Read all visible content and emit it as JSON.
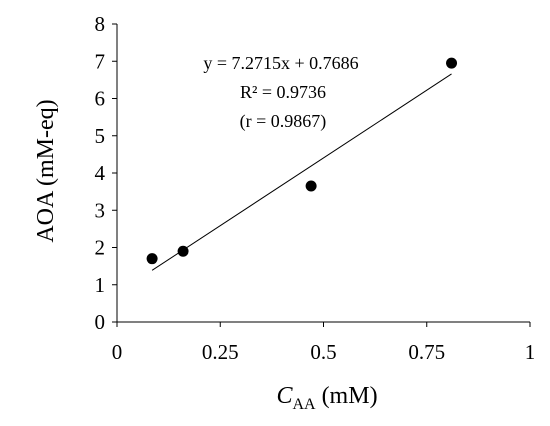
{
  "chart_data": {
    "type": "scatter",
    "xlabel": "",
    "xlabel_parts": {
      "var": "C",
      "sub": "AA",
      "unit": " (mM)"
    },
    "ylabel": "AOA (mM-eq)",
    "xlim": [
      0,
      1
    ],
    "ylim": [
      0,
      8
    ],
    "x_ticks": [
      "0",
      "0.25",
      "0.5",
      "0.75",
      "1"
    ],
    "x_tick_values": [
      0,
      0.25,
      0.5,
      0.75,
      1
    ],
    "y_ticks": [
      "0",
      "1",
      "2",
      "3",
      "4",
      "5",
      "6",
      "7",
      "8"
    ],
    "y_tick_values": [
      0,
      1,
      2,
      3,
      4,
      5,
      6,
      7,
      8
    ],
    "points": [
      {
        "x": 0.085,
        "y": 1.7
      },
      {
        "x": 0.16,
        "y": 1.9
      },
      {
        "x": 0.47,
        "y": 3.65
      },
      {
        "x": 0.81,
        "y": 6.95
      }
    ],
    "trendline": {
      "slope": 7.2715,
      "intercept": 0.7686,
      "x_range": [
        0.085,
        0.81
      ]
    },
    "annotations": [
      "y = 7.2715x + 0.7686",
      "R² = 0.9736",
      "(r = 0.9867)"
    ],
    "grid": false,
    "legend": false,
    "point_color": "#000000",
    "line_color": "#000000"
  }
}
